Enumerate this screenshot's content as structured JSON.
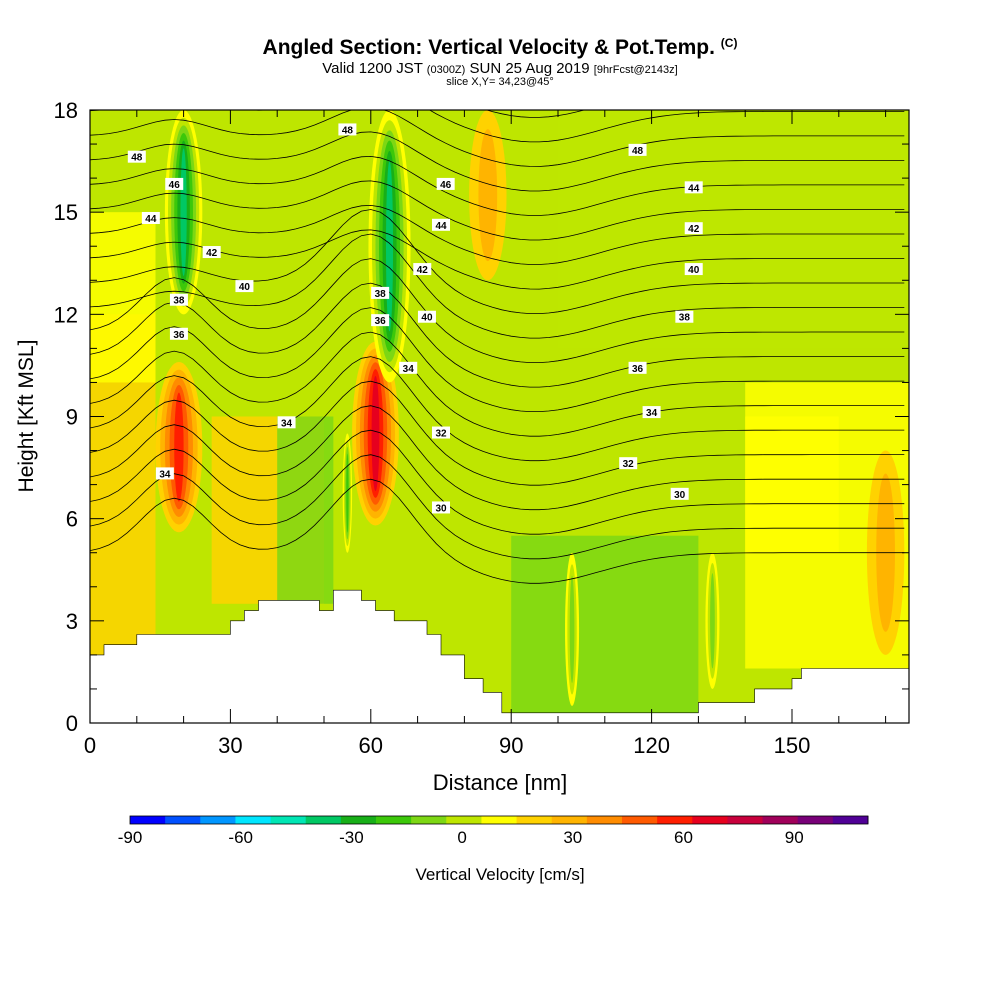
{
  "chart_data": {
    "type": "heatmap",
    "title": "Angled Section: Vertical Velocity & Pot.Temp.",
    "title_unit": "(C)",
    "subtitle": {
      "valid": "Valid 1200 JST",
      "utc": "(0300Z)",
      "date": "SUN 25 Aug 2019",
      "fcst": "[9hrFcst@2143z]"
    },
    "slice": "slice X,Y= 34,23@45°",
    "xlabel": "Distance [nm]",
    "ylabel": "Height [Kft MSL]",
    "xlim": [
      0,
      175
    ],
    "ylim": [
      0,
      18
    ],
    "x_ticks": [
      "0",
      "30",
      "60",
      "90",
      "120",
      "150"
    ],
    "y_ticks": [
      "0",
      "3",
      "6",
      "9",
      "12",
      "15",
      "18"
    ],
    "colorbar": {
      "label": "Vertical Velocity [cm/s]",
      "tick_labels": [
        "-90",
        "-60",
        "-30",
        "0",
        "30",
        "60",
        "90"
      ],
      "colors": [
        "#0000ff",
        "#0050ff",
        "#0096ff",
        "#00e6ff",
        "#00e6b4",
        "#00c864",
        "#18af18",
        "#3cc80a",
        "#7dd714",
        "#bee600",
        "#ffff00",
        "#ffd200",
        "#ffb400",
        "#ff8c00",
        "#ff5a00",
        "#ff1e00",
        "#e6001e",
        "#c8003c",
        "#a0005a",
        "#780078",
        "#500096"
      ]
    },
    "terrain": [
      [
        0,
        2.0
      ],
      [
        3,
        2.0
      ],
      [
        3,
        2.3
      ],
      [
        10,
        2.3
      ],
      [
        10,
        2.6
      ],
      [
        30,
        2.6
      ],
      [
        30,
        3.0
      ],
      [
        33,
        3.0
      ],
      [
        33,
        3.3
      ],
      [
        36,
        3.3
      ],
      [
        36,
        3.6
      ],
      [
        49,
        3.6
      ],
      [
        49,
        3.3
      ],
      [
        52,
        3.3
      ],
      [
        52,
        3.9
      ],
      [
        58,
        3.9
      ],
      [
        58,
        3.6
      ],
      [
        61,
        3.6
      ],
      [
        61,
        3.3
      ],
      [
        65,
        3.3
      ],
      [
        65,
        3.0
      ],
      [
        72,
        3.0
      ],
      [
        72,
        2.6
      ],
      [
        75,
        2.6
      ],
      [
        75,
        2.0
      ],
      [
        80,
        2.0
      ],
      [
        80,
        1.3
      ],
      [
        84,
        1.3
      ],
      [
        84,
        0.9
      ],
      [
        88,
        0.9
      ],
      [
        88,
        0.3
      ],
      [
        130,
        0.3
      ],
      [
        130,
        0.6
      ],
      [
        142,
        0.6
      ],
      [
        142,
        1.0
      ],
      [
        150,
        1.0
      ],
      [
        150,
        1.3
      ],
      [
        152,
        1.3
      ],
      [
        152,
        1.6
      ],
      [
        175,
        1.6
      ]
    ],
    "vertical_velocity_features": [
      {
        "label": "updraft",
        "x": 19,
        "y0": 5.6,
        "y1": 10.6,
        "w": 10,
        "value": 45
      },
      {
        "label": "updraft",
        "x": 61,
        "y0": 5.8,
        "y1": 11.2,
        "w": 10,
        "value": 55
      },
      {
        "label": "downdraft",
        "x": 20,
        "y0": 12.0,
        "y1": 18.0,
        "w": 8,
        "value": -50
      },
      {
        "label": "downdraft",
        "x": 64,
        "y0": 10.0,
        "y1": 18.0,
        "w": 9,
        "value": -55
      },
      {
        "label": "downdraft",
        "x": 55,
        "y0": 5.0,
        "y1": 8.5,
        "w": 2,
        "value": -35
      },
      {
        "label": "updraft",
        "x": 85,
        "y0": 13.0,
        "y1": 18.0,
        "w": 8,
        "value": 15
      },
      {
        "label": "updraft",
        "x": 170,
        "y0": 2.0,
        "y1": 8.0,
        "w": 8,
        "value": 10
      },
      {
        "label": "downdraft",
        "x": 133,
        "y0": 1.0,
        "y1": 5.0,
        "w": 3,
        "value": -25
      },
      {
        "label": "downdraft",
        "x": 103,
        "y0": 0.5,
        "y1": 5.0,
        "w": 3,
        "value": -20
      }
    ],
    "isentrope_labels": [
      {
        "text": "48",
        "x": 10,
        "y": 16.6
      },
      {
        "text": "46",
        "x": 18,
        "y": 15.8
      },
      {
        "text": "44",
        "x": 13,
        "y": 14.8
      },
      {
        "text": "42",
        "x": 26,
        "y": 13.8
      },
      {
        "text": "40",
        "x": 33,
        "y": 12.8
      },
      {
        "text": "38",
        "x": 19,
        "y": 12.4
      },
      {
        "text": "36",
        "x": 19,
        "y": 11.4
      },
      {
        "text": "34",
        "x": 42,
        "y": 8.8
      },
      {
        "text": "34",
        "x": 16,
        "y": 7.3
      },
      {
        "text": "48",
        "x": 55,
        "y": 17.4
      },
      {
        "text": "46",
        "x": 76,
        "y": 15.8
      },
      {
        "text": "44",
        "x": 75,
        "y": 14.6
      },
      {
        "text": "42",
        "x": 71,
        "y": 13.3
      },
      {
        "text": "40",
        "x": 72,
        "y": 11.9
      },
      {
        "text": "38",
        "x": 62,
        "y": 12.6
      },
      {
        "text": "36",
        "x": 62,
        "y": 11.8
      },
      {
        "text": "34",
        "x": 68,
        "y": 10.4
      },
      {
        "text": "32",
        "x": 75,
        "y": 8.5
      },
      {
        "text": "30",
        "x": 75,
        "y": 6.3
      },
      {
        "text": "48",
        "x": 117,
        "y": 16.8
      },
      {
        "text": "44",
        "x": 129,
        "y": 15.7
      },
      {
        "text": "42",
        "x": 129,
        "y": 14.5
      },
      {
        "text": "40",
        "x": 129,
        "y": 13.3
      },
      {
        "text": "38",
        "x": 127,
        "y": 11.9
      },
      {
        "text": "36",
        "x": 117,
        "y": 10.4
      },
      {
        "text": "34",
        "x": 120,
        "y": 9.1
      },
      {
        "text": "32",
        "x": 115,
        "y": 7.6
      },
      {
        "text": "30",
        "x": 126,
        "y": 6.7
      }
    ]
  }
}
